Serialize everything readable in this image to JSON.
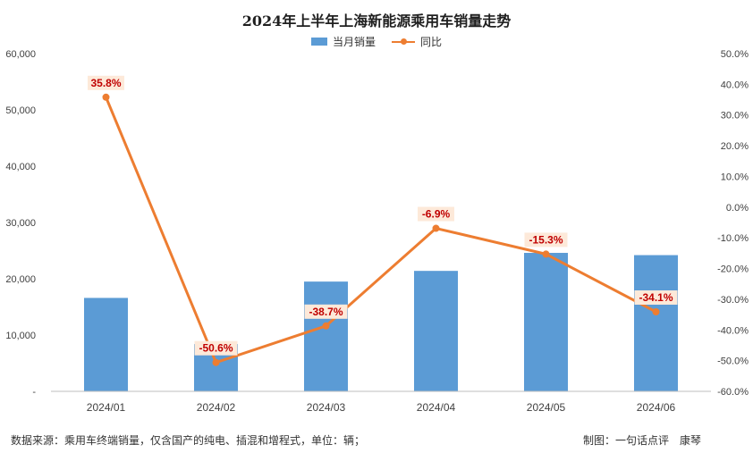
{
  "chart_data": {
    "type": "bar",
    "title": "2024年上半年上海新能源乘用车销量走势",
    "categories": [
      "2024/01",
      "2024/02",
      "2024/03",
      "2024/04",
      "2024/05",
      "2024/06"
    ],
    "series": [
      {
        "name": "当月销量",
        "type": "bar",
        "axis": "left",
        "values": [
          16600,
          8400,
          19500,
          21400,
          24600,
          24200
        ]
      },
      {
        "name": "同比",
        "type": "line",
        "axis": "right",
        "values": [
          35.8,
          -50.6,
          -38.7,
          -6.9,
          -15.3,
          -34.1
        ],
        "labels": [
          "35.8%",
          "-50.6%",
          "-38.7%",
          "-6.9%",
          "-15.3%",
          "-34.1%"
        ]
      }
    ],
    "ylim_left": [
      0,
      60000
    ],
    "ylim_right": [
      -60,
      50
    ],
    "left_ticks": [
      "-",
      "10,000",
      "20,000",
      "30,000",
      "40,000",
      "50,000",
      "60,000"
    ],
    "right_ticks": [
      "-60.0%",
      "-50.0%",
      "-40.0%",
      "-30.0%",
      "-20.0%",
      "-10.0%",
      "0.0%",
      "10.0%",
      "20.0%",
      "30.0%",
      "40.0%",
      "50.0%"
    ],
    "xlabel": "",
    "ylabel": "",
    "legend_position": "top-center",
    "colors": {
      "bar": "#5b9bd5",
      "line": "#ed7d31",
      "label_text": "#c00000",
      "label_bg": "#fde9d9"
    }
  },
  "footer": {
    "source": "数据来源：乘用车终端销量，仅含国产的纯电、插混和增程式，单位：辆；",
    "credit": "制图：一句话点评　康琴"
  }
}
